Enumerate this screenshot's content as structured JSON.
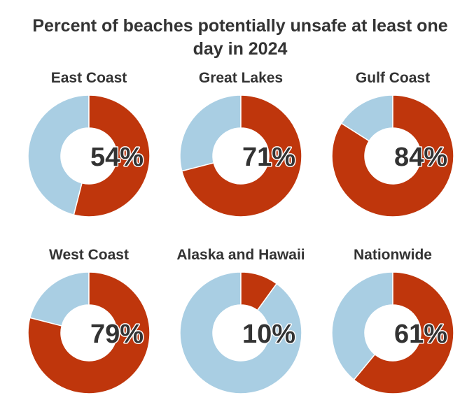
{
  "chart_data": {
    "type": "pie",
    "title": "Percent of beaches potentially unsafe at least one day in 2024",
    "title_lines": [
      "Percent of beaches potentially unsafe at least one",
      "day in 2024"
    ],
    "categories": [
      "East Coast",
      "Great Lakes",
      "Gulf Coast",
      "West Coast",
      "Alaska and Hawaii",
      "Nationwide"
    ],
    "values": [
      54,
      71,
      84,
      79,
      10,
      61
    ],
    "value_labels": [
      "54%",
      "71%",
      "84%",
      "79%",
      "10%",
      "61%"
    ],
    "unit": "%",
    "max": 100,
    "colors": {
      "unsafe": "#bf360c",
      "remainder": "#a9cee3",
      "text": "#333333"
    }
  }
}
